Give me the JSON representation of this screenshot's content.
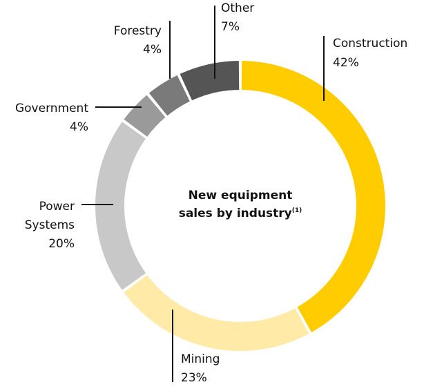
{
  "chart_data": {
    "type": "pie",
    "title_line1": "New equipment",
    "title_line2": "sales by industry",
    "title_superscript": "(1)",
    "slices": [
      {
        "label": "Construction",
        "percent_label": "42%",
        "value": 42,
        "color": "#ffcc00"
      },
      {
        "label": "Mining",
        "percent_label": "23%",
        "value": 23,
        "color": "#ffeaa8"
      },
      {
        "label": "Power Systems",
        "percent_label": "20%",
        "value": 20,
        "color": "#c8c8c8"
      },
      {
        "label": "Government",
        "percent_label": "4%",
        "value": 4,
        "color": "#9a9a9a"
      },
      {
        "label": "Forestry",
        "percent_label": "4%",
        "value": 4,
        "color": "#7a7a7a"
      },
      {
        "label": "Other",
        "percent_label": "7%",
        "value": 7,
        "color": "#555555"
      }
    ]
  }
}
